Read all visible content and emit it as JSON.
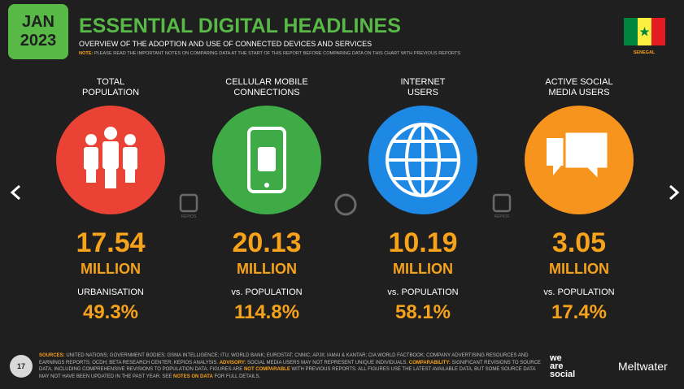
{
  "header": {
    "date_month": "JAN",
    "date_year": "2023",
    "title": "ESSENTIAL DIGITAL HEADLINES",
    "subtitle": "OVERVIEW OF THE ADOPTION AND USE OF CONNECTED DEVICES AND SERVICES",
    "note_label": "NOTE:",
    "note": "PLEASE READ THE IMPORTANT NOTES ON COMPARING DATA AT THE START OF THIS REPORT BEFORE COMPARING DATA ON THIS CHART WITH PREVIOUS REPORTS",
    "country": "SENEGAL"
  },
  "watermark": "KEPIOS",
  "stats": [
    {
      "label_lines": [
        "TOTAL",
        "POPULATION"
      ],
      "value": "17.54",
      "unit": "MILLION",
      "sub_label": "URBANISATION",
      "sub_value": "49.3%"
    },
    {
      "label_lines": [
        "CELLULAR MOBILE",
        "CONNECTIONS"
      ],
      "value": "20.13",
      "unit": "MILLION",
      "sub_label": "vs. POPULATION",
      "sub_value": "114.8%"
    },
    {
      "label_lines": [
        "INTERNET",
        "USERS"
      ],
      "value": "10.19",
      "unit": "MILLION",
      "sub_label": "vs. POPULATION",
      "sub_value": "58.1%"
    },
    {
      "label_lines": [
        "ACTIVE SOCIAL",
        "MEDIA USERS"
      ],
      "value": "3.05",
      "unit": "MILLION",
      "sub_label": "vs. POPULATION",
      "sub_value": "17.4%"
    }
  ],
  "footer": {
    "page": "17",
    "sources": [
      {
        "text": "SOURCES:",
        "emphasis": true
      },
      {
        "text": " UNITED NATIONS; GOVERNMENT BODIES; GSMA INTELLIGENCE; ITU; WORLD BANK; EUROSTAT; CNNIC; APJII; IAMAI & KANTAR; CIA WORLD FACTBOOK; COMPANY ADVERTISING RESOURCES AND EARNINGS REPORTS; OCDH; BETA RESEARCH CENTER; KEPIOS ANALYSIS. ",
        "emphasis": false
      },
      {
        "text": "ADVISORY:",
        "emphasis": true
      },
      {
        "text": " SOCIAL MEDIA USERS MAY NOT REPRESENT UNIQUE INDIVIDUALS. ",
        "emphasis": false
      },
      {
        "text": "COMPARABILITY:",
        "emphasis": true
      },
      {
        "text": " SIGNIFICANT REVISIONS TO SOURCE DATA, INCLUDING COMPREHENSIVE REVISIONS TO POPULATION DATA. FIGURES ARE ",
        "emphasis": false
      },
      {
        "text": "NOT COMPARABLE",
        "emphasis": true
      },
      {
        "text": " WITH PREVIOUS REPORTS. ALL FIGURES USE THE LATEST AVAILABLE DATA, BUT SOME SOURCE DATA MAY NOT HAVE BEEN UPDATED IN THE PAST YEAR. SEE ",
        "emphasis": false
      },
      {
        "text": "NOTES ON DATA",
        "emphasis": true
      },
      {
        "text": " FOR FULL DETAILS.",
        "emphasis": false
      }
    ],
    "brand1_lines": [
      "we",
      "are",
      "social"
    ],
    "brand2": "Meltwater"
  }
}
